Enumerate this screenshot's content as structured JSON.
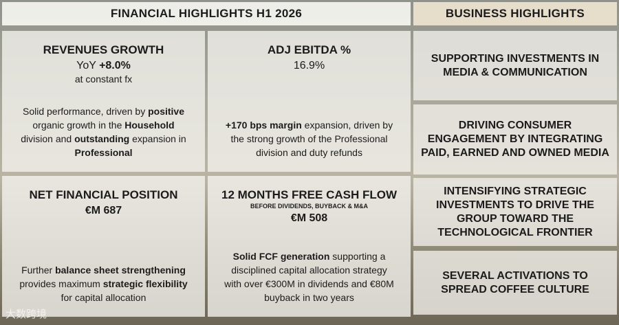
{
  "financial": {
    "header": "FINANCIAL HIGHLIGHTS H1 2026",
    "cards": [
      {
        "title": "REVENUES GROWTH",
        "metric": [
          {
            "text": "YoY ",
            "bold": false
          },
          {
            "text": "+8.0%",
            "bold": true
          }
        ],
        "note": "at constant fx",
        "body": [
          {
            "text": "Solid performance, driven by ",
            "bold": false
          },
          {
            "text": "positive",
            "bold": true
          },
          {
            "text": " organic growth in the ",
            "bold": false
          },
          {
            "text": "Household",
            "bold": true
          },
          {
            "text": " division and ",
            "bold": false
          },
          {
            "text": "outstanding",
            "bold": true
          },
          {
            "text": " expansion in ",
            "bold": false
          },
          {
            "text": "Professional",
            "bold": true
          }
        ]
      },
      {
        "title": "ADJ EBITDA %",
        "metric": [
          {
            "text": "16.9%",
            "bold": false
          }
        ],
        "body": [
          {
            "text": "+170 bps margin",
            "bold": true
          },
          {
            "text": " expansion, driven by the strong growth of the Professional division and duty refunds",
            "bold": false
          }
        ]
      },
      {
        "title": "NET FINANCIAL POSITION",
        "metric": [
          {
            "text": "€M 687",
            "bold": true
          }
        ],
        "body": [
          {
            "text": "Further ",
            "bold": false
          },
          {
            "text": "balance sheet strengthening",
            "bold": true
          },
          {
            "text": " provides maximum ",
            "bold": false
          },
          {
            "text": "strategic flexibility",
            "bold": true
          },
          {
            "text": " for capital allocation",
            "bold": false
          }
        ]
      },
      {
        "title": "12 MONTHS FREE CASH FLOW",
        "subtitle": "BEFORE DIVIDENDS, BUYBACK & M&A",
        "metric": [
          {
            "text": "€M 508",
            "bold": true
          }
        ],
        "body": [
          {
            "text": "Solid FCF generation",
            "bold": true
          },
          {
            "text": " supporting a disciplined capital allocation strategy with over €300M in dividends and €80M buyback in two years",
            "bold": false
          }
        ]
      }
    ]
  },
  "business": {
    "header": "BUSINESS HIGHLIGHTS",
    "items": [
      "SUPPORTING INVESTMENTS IN MEDIA & COMMUNICATION",
      "DRIVING CONSUMER ENGAGEMENT BY INTEGRATING PAID, EARNED AND OWNED MEDIA",
      "INTENSIFYING STRATEGIC INVESTMENTS TO DRIVE THE GROUP TOWARD THE TECHNOLOGICAL FRONTIER",
      "SEVERAL ACTIVATIONS TO SPREAD COFFEE CULTURE"
    ]
  },
  "watermark": "大数跨境"
}
